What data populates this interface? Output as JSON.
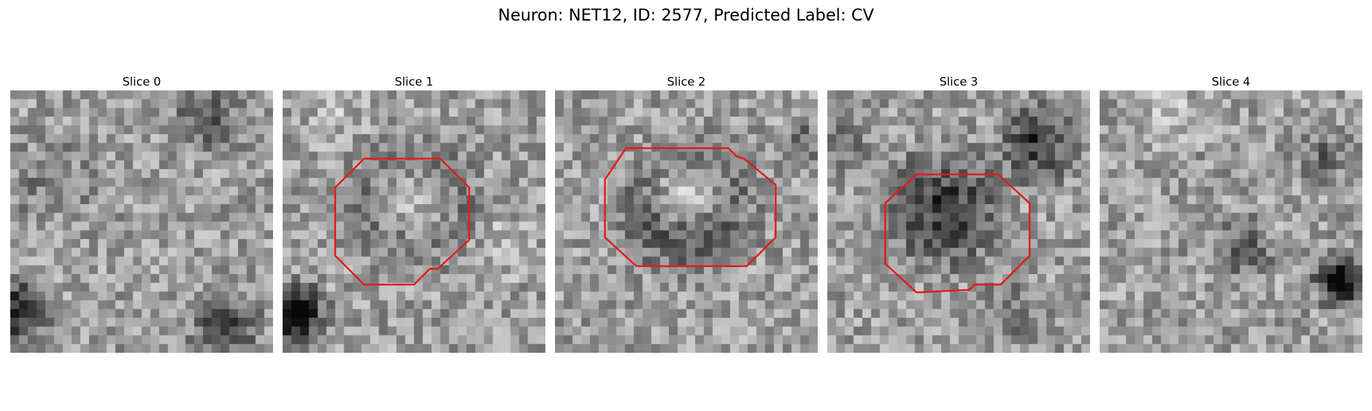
{
  "figure": {
    "title": "Neuron: NET12, ID: 2577, Predicted Label: CV"
  },
  "panels": [
    {
      "title": "Slice 0",
      "has_contour": false,
      "seed": 11,
      "blobs": [
        [
          0.03,
          0.84,
          0.16,
          -0.55
        ],
        [
          0.82,
          0.9,
          0.18,
          -0.35
        ],
        [
          0.75,
          0.12,
          0.18,
          -0.3
        ],
        [
          0.15,
          0.35,
          0.22,
          -0.15
        ]
      ]
    },
    {
      "title": "Slice 1",
      "has_contour": true,
      "seed": 23,
      "blobs": [
        [
          0.5,
          0.42,
          0.32,
          -0.28
        ],
        [
          0.5,
          0.42,
          0.18,
          0.42
        ],
        [
          0.05,
          0.85,
          0.15,
          -0.7
        ],
        [
          0.85,
          0.6,
          0.15,
          0.15
        ],
        [
          0.2,
          0.05,
          0.2,
          0.1
        ]
      ]
    },
    {
      "title": "Slice 2",
      "has_contour": true,
      "seed": 37,
      "blobs": [
        [
          0.5,
          0.45,
          0.33,
          -0.4
        ],
        [
          0.5,
          0.4,
          0.17,
          0.55
        ],
        [
          0.95,
          0.2,
          0.12,
          -0.25
        ]
      ]
    },
    {
      "title": "Slice 3",
      "has_contour": true,
      "seed": 53,
      "blobs": [
        [
          0.45,
          0.45,
          0.3,
          -0.45
        ],
        [
          0.8,
          0.2,
          0.2,
          -0.45
        ],
        [
          0.05,
          0.2,
          0.14,
          -0.2
        ],
        [
          0.7,
          0.85,
          0.2,
          -0.15
        ]
      ]
    },
    {
      "title": "Slice 4",
      "has_contour": false,
      "seed": 71,
      "blobs": [
        [
          0.92,
          0.72,
          0.14,
          -0.6
        ],
        [
          0.55,
          0.6,
          0.15,
          -0.3
        ],
        [
          0.25,
          0.1,
          0.2,
          0.15
        ],
        [
          0.85,
          0.25,
          0.15,
          -0.2
        ]
      ]
    }
  ],
  "contour_color": "#e31a1c",
  "contours": [
    null,
    [
      [
        0.31,
        0.26
      ],
      [
        0.6,
        0.26
      ],
      [
        0.71,
        0.37
      ],
      [
        0.71,
        0.57
      ],
      [
        0.59,
        0.68
      ],
      [
        0.56,
        0.68
      ],
      [
        0.5,
        0.74
      ],
      [
        0.31,
        0.74
      ],
      [
        0.2,
        0.63
      ],
      [
        0.2,
        0.37
      ]
    ],
    [
      [
        0.27,
        0.22
      ],
      [
        0.66,
        0.22
      ],
      [
        0.69,
        0.25
      ],
      [
        0.72,
        0.26
      ],
      [
        0.84,
        0.36
      ],
      [
        0.84,
        0.56
      ],
      [
        0.73,
        0.67
      ],
      [
        0.31,
        0.67
      ],
      [
        0.19,
        0.56
      ],
      [
        0.19,
        0.34
      ]
    ],
    [
      [
        0.34,
        0.32
      ],
      [
        0.65,
        0.32
      ],
      [
        0.77,
        0.43
      ],
      [
        0.77,
        0.63
      ],
      [
        0.66,
        0.74
      ],
      [
        0.56,
        0.74
      ],
      [
        0.54,
        0.76
      ],
      [
        0.34,
        0.77
      ],
      [
        0.22,
        0.66
      ],
      [
        0.22,
        0.43
      ]
    ],
    null
  ]
}
